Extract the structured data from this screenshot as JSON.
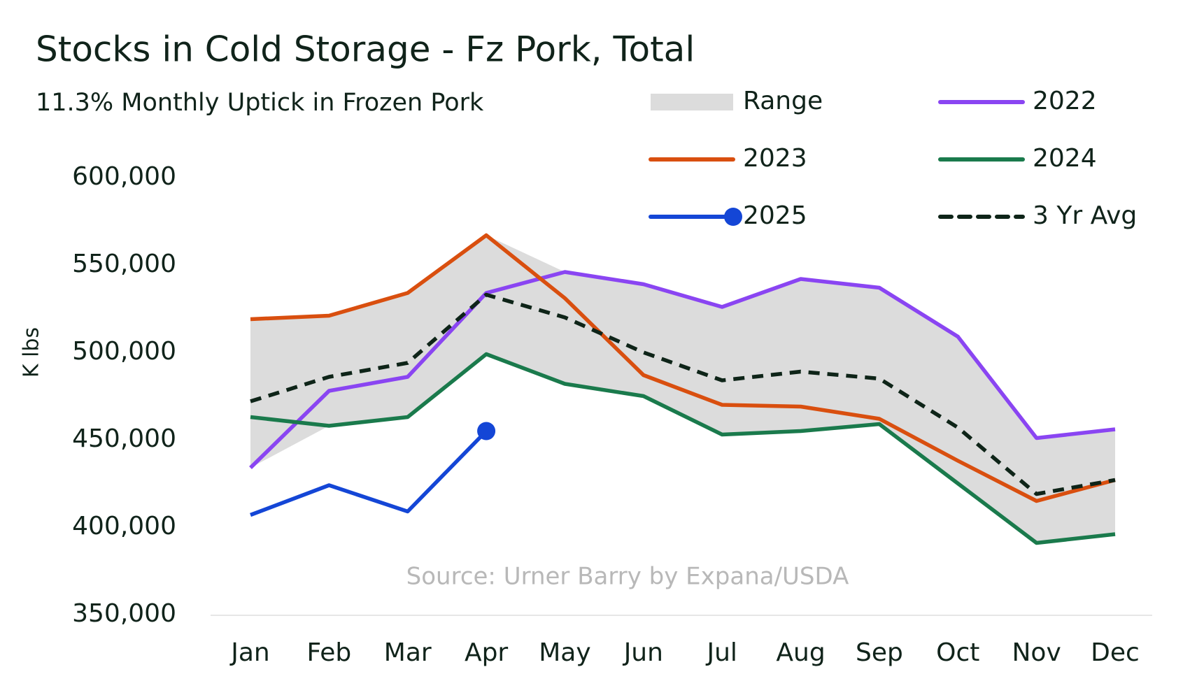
{
  "chart_data": {
    "type": "line",
    "title": "Stocks in Cold Storage - Fz Pork, Total",
    "subtitle": "11.3% Monthly Uptick in Frozen Pork",
    "y_label": "K lbs",
    "source": "Source: Urner Barry by Expana/USDA",
    "categories": [
      "Jan",
      "Feb",
      "Mar",
      "Apr",
      "May",
      "Jun",
      "Jul",
      "Aug",
      "Sep",
      "Oct",
      "Nov",
      "Dec"
    ],
    "ylim": [
      350000,
      600000
    ],
    "yticks": [
      {
        "value": 350000,
        "label": "350,000"
      },
      {
        "value": 400000,
        "label": "400,000"
      },
      {
        "value": 450000,
        "label": "450,000"
      },
      {
        "value": 500000,
        "label": "500,000"
      },
      {
        "value": 550000,
        "label": "550,000"
      },
      {
        "value": 600000,
        "label": "600,000"
      }
    ],
    "range": {
      "name": "Range",
      "color": "#dcdcdc",
      "low": [
        434000,
        458000,
        463000,
        499000,
        482000,
        475000,
        453000,
        455000,
        459000,
        425000,
        391000,
        396000
      ],
      "high": [
        519000,
        521000,
        534000,
        567000,
        546000,
        539000,
        526000,
        542000,
        537000,
        509000,
        451000,
        456000
      ]
    },
    "series": [
      {
        "name": "2022",
        "color": "#8a45f2",
        "values": [
          434000,
          478000,
          486000,
          534000,
          546000,
          539000,
          526000,
          542000,
          537000,
          509000,
          451000,
          456000
        ]
      },
      {
        "name": "2023",
        "color": "#d94f0f",
        "values": [
          519000,
          521000,
          534000,
          567000,
          531000,
          487000,
          470000,
          469000,
          462000,
          438000,
          415000,
          427000
        ]
      },
      {
        "name": "2024",
        "color": "#1a7a4c",
        "values": [
          463000,
          458000,
          463000,
          499000,
          482000,
          475000,
          453000,
          455000,
          459000,
          425000,
          391000,
          396000
        ]
      },
      {
        "name": "2025",
        "color": "#1446d6",
        "end_marker": true,
        "values": [
          407000,
          424000,
          409000,
          455000,
          null,
          null,
          null,
          null,
          null,
          null,
          null,
          null
        ]
      },
      {
        "name": "3 Yr Avg",
        "color": "#0e2418",
        "dashed": true,
        "values": [
          472000,
          486000,
          494000,
          533000,
          520000,
          500000,
          484000,
          489000,
          485000,
          457000,
          419000,
          427000
        ]
      }
    ]
  }
}
